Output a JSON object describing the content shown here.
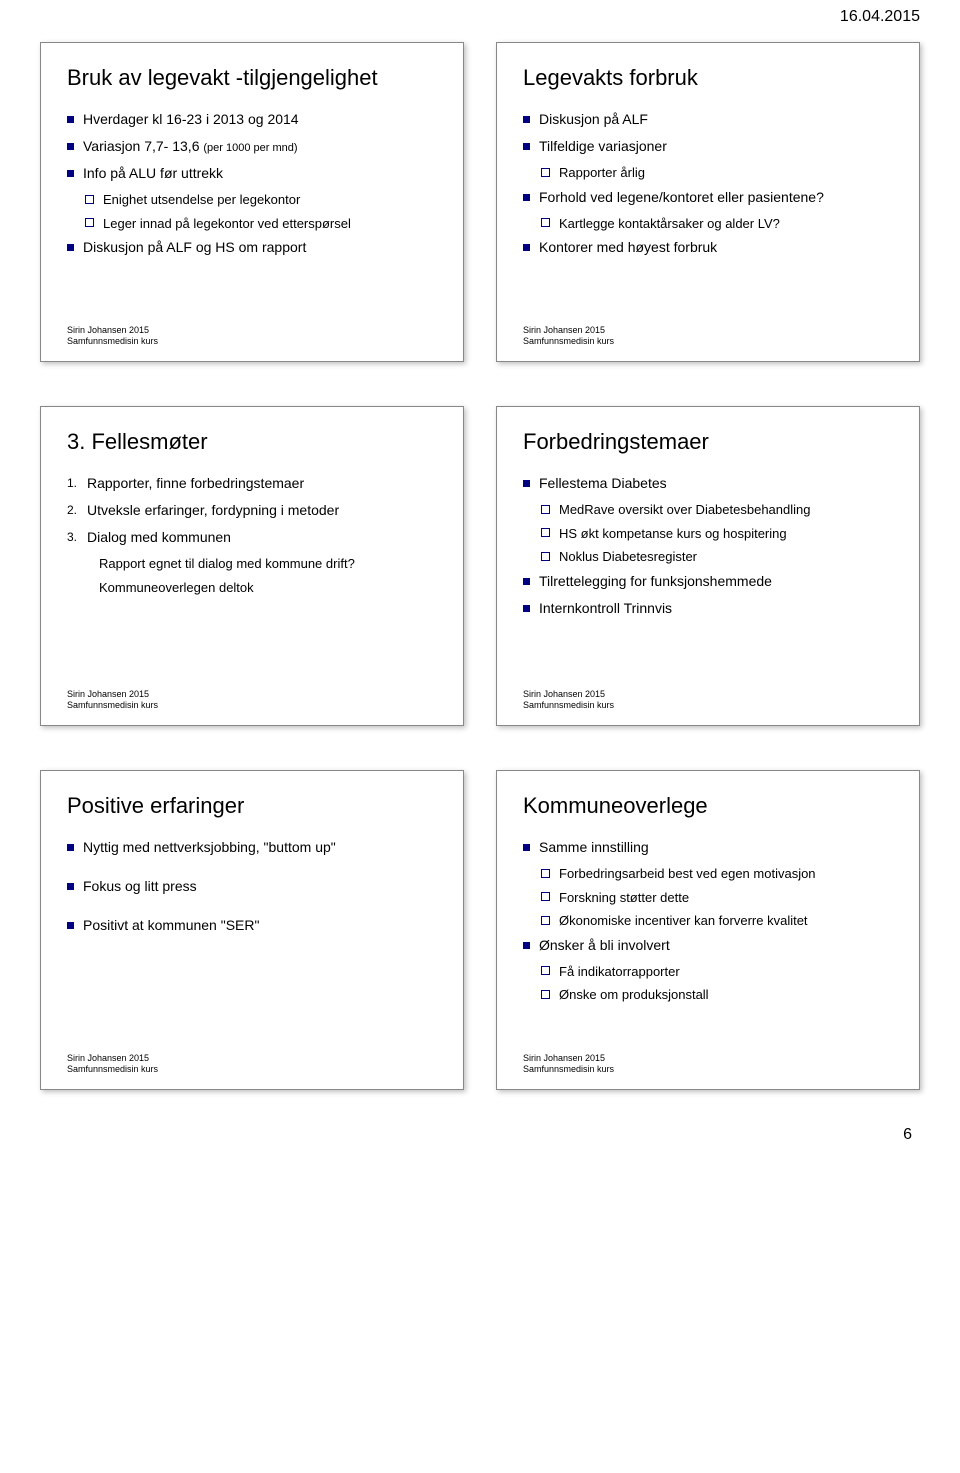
{
  "page": {
    "header_date": "16.04.2015",
    "page_number": "6"
  },
  "footer": {
    "line1": "Sirin Johansen 2015",
    "line2": "Samfunnsmedisin kurs"
  },
  "slides": [
    {
      "title": "Bruk av legevakt -tilgjengelighet",
      "type": "bullets",
      "items": [
        {
          "level": 1,
          "text": "Hverdager kl 16-23 i 2013 og 2014"
        },
        {
          "level": 1,
          "text": "Variasjon 7,7- 13,6 ",
          "suffix_small": "(per 1000 per mnd)"
        },
        {
          "level": 1,
          "text": "Info på ALU før uttrekk"
        },
        {
          "level": 2,
          "text": "Enighet utsendelse per legekontor"
        },
        {
          "level": 2,
          "text": "Leger innad på legekontor ved etterspørsel"
        },
        {
          "level": 1,
          "text": "Diskusjon på ALF og HS om rapport"
        }
      ]
    },
    {
      "title": "Legevakts forbruk",
      "type": "bullets",
      "items": [
        {
          "level": 1,
          "text": "Diskusjon på ALF"
        },
        {
          "level": 1,
          "text": "Tilfeldige variasjoner"
        },
        {
          "level": 2,
          "text": "Rapporter årlig"
        },
        {
          "level": 1,
          "text": "Forhold ved legene/kontoret eller pasientene?"
        },
        {
          "level": 2,
          "text": "Kartlegge kontaktårsaker og alder LV?"
        },
        {
          "level": 1,
          "text": "Kontorer med høyest forbruk"
        }
      ]
    },
    {
      "title": "3. Fellesmøter",
      "type": "numbered",
      "items": [
        {
          "num": "1.",
          "text": "Rapporter, finne forbedringstemaer"
        },
        {
          "num": "2.",
          "text": "Utveksle erfaringer, fordypning i metoder"
        },
        {
          "num": "3.",
          "text": "Dialog med kommunen"
        }
      ],
      "sub_after_3": [
        "Rapport egnet til dialog med kommune drift?",
        "Kommuneoverlegen deltok"
      ]
    },
    {
      "title": "Forbedringstemaer",
      "type": "bullets",
      "items": [
        {
          "level": 1,
          "text": "Fellestema Diabetes"
        },
        {
          "level": 2,
          "text": "MedRave oversikt over Diabetesbehandling"
        },
        {
          "level": 2,
          "text": "HS økt kompetanse kurs og hospitering"
        },
        {
          "level": 2,
          "text": "Noklus Diabetesregister"
        },
        {
          "level": 1,
          "text": "Tilrettelegging for funksjonshemmede"
        },
        {
          "level": 1,
          "text": "Internkontroll Trinnvis"
        }
      ]
    },
    {
      "title": "Positive erfaringer",
      "type": "bullets",
      "items": [
        {
          "level": 1,
          "text": "Nyttig med nettverksjobbing, \"buttom up\""
        },
        {
          "level": 1,
          "text": "Fokus og litt press"
        },
        {
          "level": 1,
          "text": "Positivt at kommunen \"SER\""
        }
      ],
      "spaced": true
    },
    {
      "title": "Kommuneoverlege",
      "type": "bullets",
      "items": [
        {
          "level": 1,
          "text": "Samme innstilling"
        },
        {
          "level": 2,
          "text": "Forbedringsarbeid best ved egen motivasjon"
        },
        {
          "level": 2,
          "text": "Forskning støtter dette"
        },
        {
          "level": 2,
          "text": "Økonomiske incentiver kan forverre kvalitet"
        },
        {
          "level": 1,
          "text": "Ønsker å bli involvert"
        },
        {
          "level": 2,
          "text": "Få indikatorrapporter"
        },
        {
          "level": 2,
          "text": "Ønske om produksjonstall"
        }
      ]
    }
  ]
}
